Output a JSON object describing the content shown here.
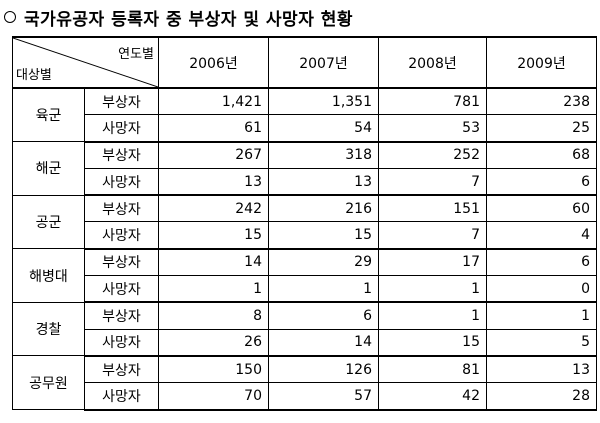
{
  "title": "국가유공자 등록자 중 부상자 및 사망자 현황",
  "header": {
    "corner_top": "연도별",
    "corner_bottom": "대상별",
    "years": [
      "2006년",
      "2007년",
      "2008년",
      "2009년"
    ]
  },
  "groups": [
    {
      "name": "육군",
      "rows": [
        {
          "kind": "부상자",
          "values": [
            "1,421",
            "1,351",
            "781",
            "238"
          ]
        },
        {
          "kind": "사망자",
          "values": [
            "61",
            "54",
            "53",
            "25"
          ]
        }
      ]
    },
    {
      "name": "해군",
      "rows": [
        {
          "kind": "부상자",
          "values": [
            "267",
            "318",
            "252",
            "68"
          ]
        },
        {
          "kind": "사망자",
          "values": [
            "13",
            "13",
            "7",
            "6"
          ]
        }
      ]
    },
    {
      "name": "공군",
      "rows": [
        {
          "kind": "부상자",
          "values": [
            "242",
            "216",
            "151",
            "60"
          ]
        },
        {
          "kind": "사망자",
          "values": [
            "15",
            "15",
            "7",
            "4"
          ]
        }
      ]
    },
    {
      "name": "해병대",
      "rows": [
        {
          "kind": "부상자",
          "values": [
            "14",
            "29",
            "17",
            "6"
          ]
        },
        {
          "kind": "사망자",
          "values": [
            "1",
            "1",
            "1",
            "0"
          ]
        }
      ]
    },
    {
      "name": "경찰",
      "rows": [
        {
          "kind": "부상자",
          "values": [
            "8",
            "6",
            "1",
            "1"
          ]
        },
        {
          "kind": "사망자",
          "values": [
            "26",
            "14",
            "15",
            "5"
          ]
        }
      ]
    },
    {
      "name": "공무원",
      "rows": [
        {
          "kind": "부상자",
          "values": [
            "150",
            "126",
            "81",
            "13"
          ]
        },
        {
          "kind": "사망자",
          "values": [
            "70",
            "57",
            "42",
            "28"
          ]
        }
      ]
    }
  ]
}
